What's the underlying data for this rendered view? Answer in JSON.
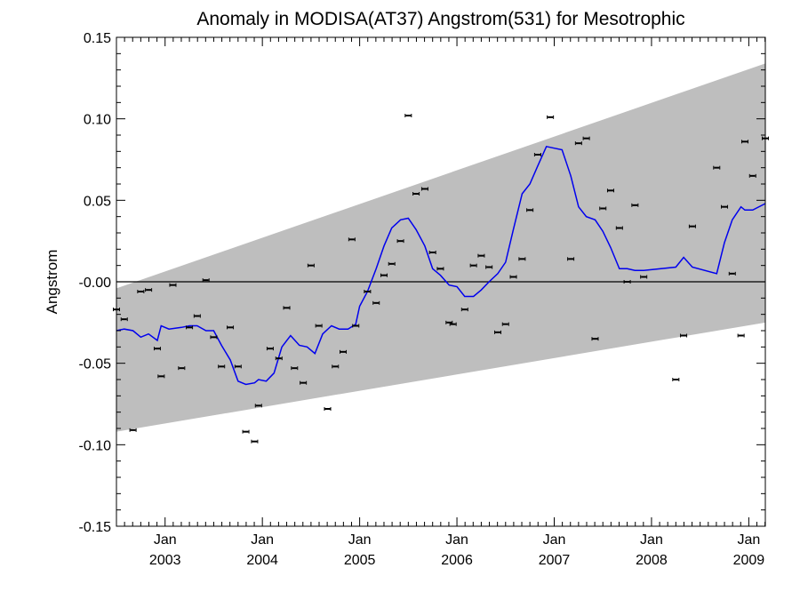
{
  "chart_data": {
    "type": "line",
    "title": "Anomaly in MODISA(AT37) Angstrom(531) for Mesotrophic",
    "xlabel": "",
    "ylabel": "Angstrom",
    "xlim": [
      2002.5,
      2009.17
    ],
    "ylim": [
      -0.15,
      0.15
    ],
    "grid": false,
    "y_ticks": [
      {
        "value": 0.15,
        "label": "0.15"
      },
      {
        "value": 0.1,
        "label": "0.10"
      },
      {
        "value": 0.05,
        "label": "0.05"
      },
      {
        "value": 0.0,
        "label": "-0.00"
      },
      {
        "value": -0.05,
        "label": "-0.05"
      },
      {
        "value": -0.1,
        "label": "-0.10"
      },
      {
        "value": -0.15,
        "label": "-0.15"
      }
    ],
    "x_ticks": [
      {
        "value": 2003.0,
        "month": "Jan",
        "year": "2003"
      },
      {
        "value": 2004.0,
        "month": "Jan",
        "year": "2004"
      },
      {
        "value": 2005.0,
        "month": "Jan",
        "year": "2005"
      },
      {
        "value": 2006.0,
        "month": "Jan",
        "year": "2006"
      },
      {
        "value": 2007.0,
        "month": "Jan",
        "year": "2007"
      },
      {
        "value": 2008.0,
        "month": "Jan",
        "year": "2008"
      },
      {
        "value": 2009.0,
        "month": "Jan",
        "year": "2009"
      }
    ],
    "band": {
      "color": "#bebebe",
      "upper": [
        [
          2002.5,
          -0.004
        ],
        [
          2009.17,
          0.134
        ]
      ],
      "lower": [
        [
          2002.5,
          -0.092
        ],
        [
          2009.17,
          -0.025
        ]
      ]
    },
    "zero_line": {
      "value": 0.0,
      "color": "#000000"
    },
    "series": [
      {
        "type": "scatter_errorbar",
        "color": "#000000",
        "points": [
          [
            2002.5,
            -0.017
          ],
          [
            2002.58,
            -0.023
          ],
          [
            2002.67,
            -0.091
          ],
          [
            2002.75,
            -0.006
          ],
          [
            2002.83,
            -0.005
          ],
          [
            2002.92,
            -0.041
          ],
          [
            2002.96,
            -0.058
          ],
          [
            2003.08,
            -0.002
          ],
          [
            2003.17,
            -0.053
          ],
          [
            2003.25,
            -0.028
          ],
          [
            2003.33,
            -0.021
          ],
          [
            2003.42,
            0.001
          ],
          [
            2003.5,
            -0.034
          ],
          [
            2003.58,
            -0.052
          ],
          [
            2003.67,
            -0.028
          ],
          [
            2003.75,
            -0.052
          ],
          [
            2003.83,
            -0.092
          ],
          [
            2003.92,
            -0.098
          ],
          [
            2003.96,
            -0.076
          ],
          [
            2004.08,
            -0.041
          ],
          [
            2004.17,
            -0.047
          ],
          [
            2004.25,
            -0.016
          ],
          [
            2004.33,
            -0.053
          ],
          [
            2004.42,
            -0.062
          ],
          [
            2004.5,
            0.01
          ],
          [
            2004.58,
            -0.027
          ],
          [
            2004.67,
            -0.078
          ],
          [
            2004.75,
            -0.052
          ],
          [
            2004.83,
            -0.043
          ],
          [
            2004.92,
            0.026
          ],
          [
            2004.96,
            -0.027
          ],
          [
            2005.08,
            -0.006
          ],
          [
            2005.17,
            -0.013
          ],
          [
            2005.25,
            0.004
          ],
          [
            2005.33,
            0.011
          ],
          [
            2005.42,
            0.025
          ],
          [
            2005.5,
            0.102
          ],
          [
            2005.58,
            0.054
          ],
          [
            2005.67,
            0.057
          ],
          [
            2005.75,
            0.018
          ],
          [
            2005.83,
            0.008
          ],
          [
            2005.92,
            -0.025
          ],
          [
            2005.96,
            -0.026
          ],
          [
            2006.08,
            -0.017
          ],
          [
            2006.17,
            0.01
          ],
          [
            2006.25,
            0.016
          ],
          [
            2006.33,
            0.009
          ],
          [
            2006.42,
            -0.031
          ],
          [
            2006.5,
            -0.026
          ],
          [
            2006.58,
            0.003
          ],
          [
            2006.67,
            0.014
          ],
          [
            2006.75,
            0.044
          ],
          [
            2006.83,
            0.078
          ],
          [
            2006.96,
            0.101
          ],
          [
            2007.17,
            0.014
          ],
          [
            2007.25,
            0.085
          ],
          [
            2007.33,
            0.088
          ],
          [
            2007.42,
            -0.035
          ],
          [
            2007.5,
            0.045
          ],
          [
            2007.58,
            0.056
          ],
          [
            2007.67,
            0.033
          ],
          [
            2007.75,
            0.0
          ],
          [
            2007.83,
            0.047
          ],
          [
            2007.92,
            0.003
          ],
          [
            2008.25,
            -0.06
          ],
          [
            2008.33,
            -0.033
          ],
          [
            2008.42,
            0.034
          ],
          [
            2008.67,
            0.07
          ],
          [
            2008.75,
            0.046
          ],
          [
            2008.83,
            0.005
          ],
          [
            2008.92,
            -0.033
          ],
          [
            2008.96,
            0.086
          ],
          [
            2009.04,
            0.065
          ],
          [
            2009.17,
            0.088
          ]
        ]
      },
      {
        "type": "line",
        "color": "#0000ee",
        "points": [
          [
            2002.5,
            -0.03
          ],
          [
            2002.58,
            -0.029
          ],
          [
            2002.67,
            -0.03
          ],
          [
            2002.75,
            -0.034
          ],
          [
            2002.83,
            -0.032
          ],
          [
            2002.92,
            -0.036
          ],
          [
            2002.96,
            -0.027
          ],
          [
            2003.04,
            -0.029
          ],
          [
            2003.17,
            -0.028
          ],
          [
            2003.25,
            -0.027
          ],
          [
            2003.33,
            -0.027
          ],
          [
            2003.42,
            -0.03
          ],
          [
            2003.5,
            -0.03
          ],
          [
            2003.58,
            -0.039
          ],
          [
            2003.67,
            -0.048
          ],
          [
            2003.75,
            -0.061
          ],
          [
            2003.83,
            -0.063
          ],
          [
            2003.92,
            -0.062
          ],
          [
            2003.96,
            -0.06
          ],
          [
            2004.04,
            -0.061
          ],
          [
            2004.12,
            -0.056
          ],
          [
            2004.2,
            -0.04
          ],
          [
            2004.29,
            -0.033
          ],
          [
            2004.38,
            -0.039
          ],
          [
            2004.46,
            -0.04
          ],
          [
            2004.54,
            -0.044
          ],
          [
            2004.62,
            -0.032
          ],
          [
            2004.71,
            -0.027
          ],
          [
            2004.79,
            -0.029
          ],
          [
            2004.88,
            -0.029
          ],
          [
            2004.96,
            -0.026
          ],
          [
            2005.0,
            -0.015
          ],
          [
            2005.08,
            -0.006
          ],
          [
            2005.17,
            0.008
          ],
          [
            2005.25,
            0.022
          ],
          [
            2005.33,
            0.033
          ],
          [
            2005.42,
            0.038
          ],
          [
            2005.5,
            0.039
          ],
          [
            2005.58,
            0.032
          ],
          [
            2005.67,
            0.022
          ],
          [
            2005.75,
            0.008
          ],
          [
            2005.83,
            0.004
          ],
          [
            2005.92,
            -0.002
          ],
          [
            2006.0,
            -0.003
          ],
          [
            2006.08,
            -0.009
          ],
          [
            2006.17,
            -0.009
          ],
          [
            2006.25,
            -0.005
          ],
          [
            2006.33,
            0.0
          ],
          [
            2006.42,
            0.005
          ],
          [
            2006.5,
            0.012
          ],
          [
            2006.58,
            0.032
          ],
          [
            2006.67,
            0.054
          ],
          [
            2006.75,
            0.06
          ],
          [
            2006.83,
            0.071
          ],
          [
            2006.92,
            0.083
          ],
          [
            2007.0,
            0.082
          ],
          [
            2007.08,
            0.081
          ],
          [
            2007.17,
            0.065
          ],
          [
            2007.25,
            0.046
          ],
          [
            2007.33,
            0.04
          ],
          [
            2007.42,
            0.038
          ],
          [
            2007.5,
            0.031
          ],
          [
            2007.58,
            0.021
          ],
          [
            2007.67,
            0.008
          ],
          [
            2007.75,
            0.008
          ],
          [
            2007.83,
            0.007
          ],
          [
            2007.92,
            0.007
          ],
          [
            2008.25,
            0.009
          ],
          [
            2008.33,
            0.015
          ],
          [
            2008.42,
            0.009
          ],
          [
            2008.67,
            0.005
          ],
          [
            2008.75,
            0.024
          ],
          [
            2008.83,
            0.038
          ],
          [
            2008.92,
            0.046
          ],
          [
            2008.96,
            0.044
          ],
          [
            2009.04,
            0.044
          ],
          [
            2009.17,
            0.048
          ]
        ]
      }
    ]
  }
}
